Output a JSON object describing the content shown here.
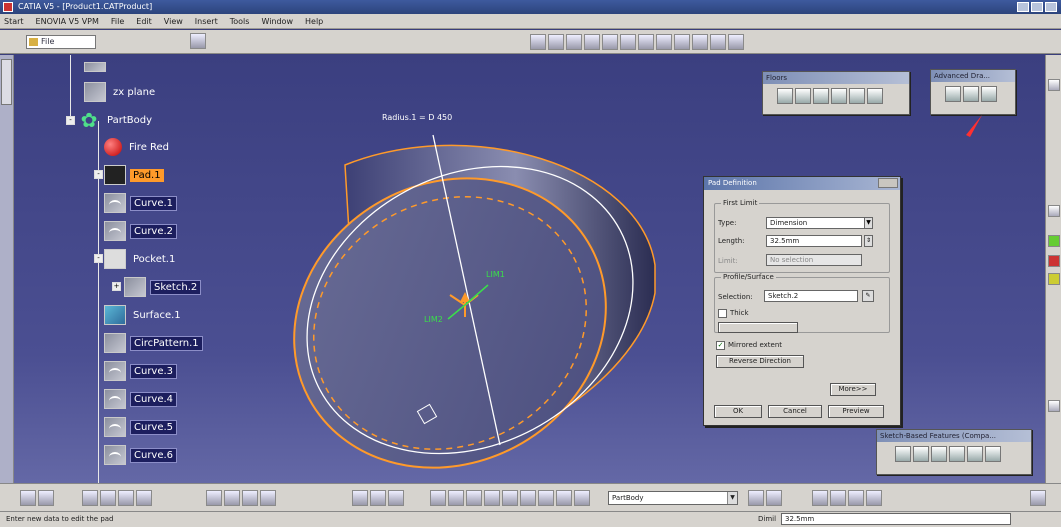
{
  "window": {
    "title": "CATIA V5 - [Product1.CATProduct]"
  },
  "menu": [
    "Start",
    "ENOVIA V5 VPM",
    "File",
    "Edit",
    "View",
    "Insert",
    "Tools",
    "Window",
    "Help"
  ],
  "toolbar": {
    "file_combo": "File"
  },
  "tree": {
    "items": [
      {
        "label": "zx plane"
      },
      {
        "label": "PartBody"
      },
      {
        "label": "Fire Red"
      },
      {
        "label": "Pad.1"
      },
      {
        "label": "Curve.1"
      },
      {
        "label": "Curve.2"
      },
      {
        "label": "Pocket.1"
      },
      {
        "label": "Sketch.2"
      },
      {
        "label": "Surface.1"
      },
      {
        "label": "CircPattern.1"
      },
      {
        "label": "Curve.3"
      },
      {
        "label": "Curve.4"
      },
      {
        "label": "Curve.5"
      },
      {
        "label": "Curve.6"
      }
    ]
  },
  "viewport": {
    "dimension_label": "Radius.1 = D 450",
    "lim1": "LIM1",
    "lim2": "LIM2"
  },
  "panels": {
    "floors": {
      "title": "Floors"
    },
    "advanced": {
      "title": "Advanced Dra..."
    },
    "sketch_based": {
      "title": "Sketch-Based Features (Compa..."
    }
  },
  "pad_dialog": {
    "title": "Pad Definition",
    "first_limit": {
      "group": "First Limit",
      "type_label": "Type:",
      "type_value": "Dimension",
      "length_label": "Length:",
      "length_value": "32.5mm",
      "limit_label": "Limit:",
      "limit_value": "No selection"
    },
    "profile": {
      "group": "Profile/Surface",
      "selection_label": "Selection:",
      "selection_value": "Sketch.2",
      "thick_label": "Thick"
    },
    "mirrored_label": "Mirrored extent",
    "reverse_button": "Reverse Direction",
    "more_button": "More>>",
    "ok_button": "OK",
    "cancel_button": "Cancel",
    "preview_button": "Preview"
  },
  "bottom": {
    "body_combo": "PartBody"
  },
  "status": {
    "message": "Enter new data to edit the pad",
    "cmd_label": "Dimil",
    "cmd_value": "32.5mm"
  }
}
